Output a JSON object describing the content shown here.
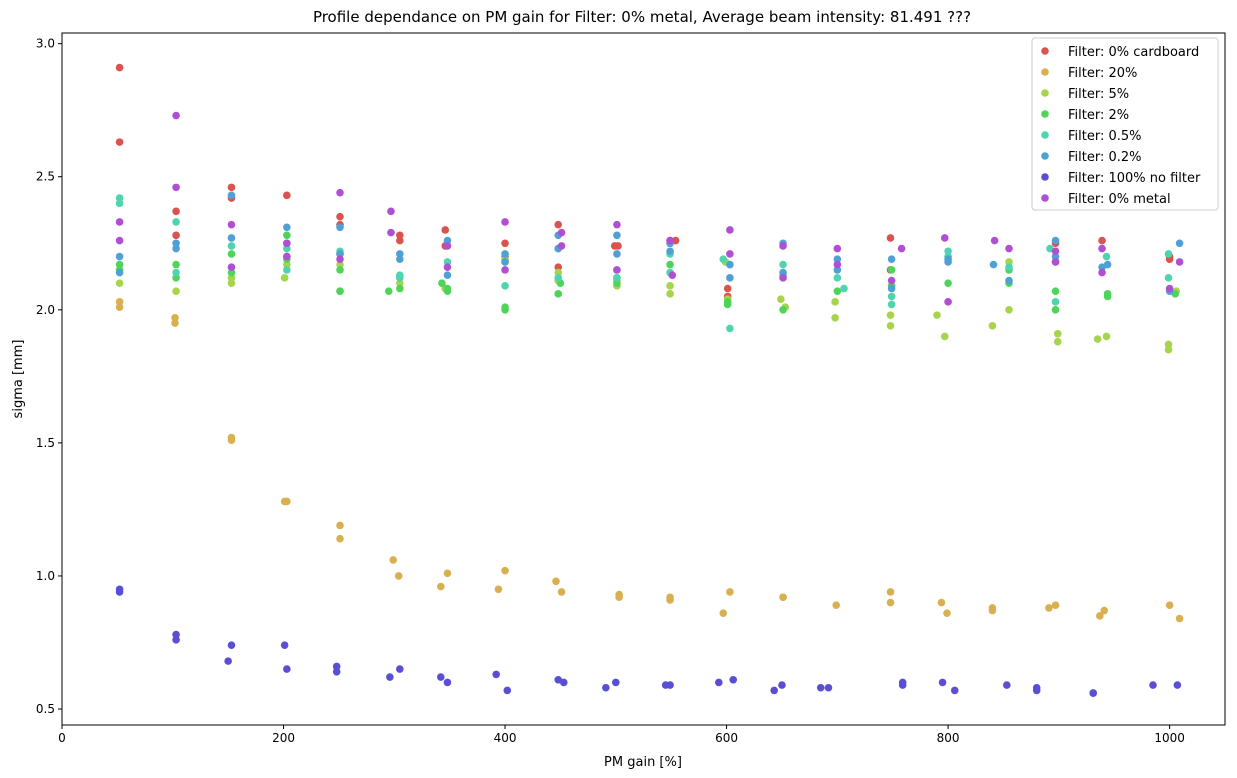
{
  "chart_data": {
    "type": "scatter",
    "title": "Profile dependance on PM gain for Filter: 0% metal, Average beam intensity: 81.491 ???",
    "xlabel": "PM gain [%]",
    "ylabel": "sigma [mm]",
    "xlim": [
      0,
      1050
    ],
    "ylim": [
      0.44,
      3.04
    ],
    "xticks": [
      0,
      200,
      400,
      600,
      800,
      1000
    ],
    "yticks": [
      0.5,
      1.0,
      1.5,
      2.0,
      2.5,
      3.0
    ],
    "xtick_labels": [
      "0",
      "200",
      "400",
      "600",
      "800",
      "1000"
    ],
    "ytick_labels": [
      "0.5",
      "1.0",
      "1.5",
      "2.0",
      "2.5",
      "3.0"
    ],
    "grid": false,
    "legend_position": "top-right",
    "series": [
      {
        "name": "Filter: 0% cardboard",
        "color": "#d9534f",
        "x": [
          52,
          52,
          103,
          103,
          153,
          153,
          203,
          203,
          251,
          251,
          305,
          305,
          346,
          346,
          400,
          400,
          448,
          448,
          499,
          502,
          549,
          549,
          554,
          601,
          601,
          748,
          748,
          897,
          897,
          1000,
          1000,
          939
        ],
        "y": [
          2.91,
          2.63,
          2.37,
          2.28,
          2.46,
          2.42,
          2.43,
          2.2,
          2.35,
          2.32,
          2.28,
          2.26,
          2.3,
          2.24,
          2.25,
          2.2,
          2.32,
          2.16,
          2.24,
          2.24,
          2.26,
          2.25,
          2.26,
          2.08,
          2.05,
          2.27,
          2.15,
          2.25,
          2.18,
          2.19,
          2.2,
          2.26
        ]
      },
      {
        "name": "Filter: 20%",
        "color": "#d9b04f",
        "x": [
          52,
          52,
          102,
          102,
          153,
          153,
          201,
          203,
          251,
          251,
          299,
          304,
          342,
          348,
          394,
          400,
          446,
          451,
          503,
          503,
          549,
          549,
          597,
          603,
          651,
          651,
          699,
          748,
          748,
          794,
          799,
          840,
          840,
          891,
          897,
          937,
          941,
          1000,
          1009
        ],
        "y": [
          2.03,
          2.01,
          1.97,
          1.95,
          1.52,
          1.51,
          1.28,
          1.28,
          1.19,
          1.14,
          1.06,
          1.0,
          0.96,
          1.01,
          0.95,
          1.02,
          0.98,
          0.94,
          0.93,
          0.92,
          0.92,
          0.91,
          0.86,
          0.94,
          0.92,
          0.92,
          0.89,
          0.94,
          0.9,
          0.9,
          0.86,
          0.88,
          0.87,
          0.88,
          0.89,
          0.85,
          0.87,
          0.89,
          0.84
        ]
      },
      {
        "name": "Filter: 5%",
        "color": "#a6d44a",
        "x": [
          52,
          103,
          153,
          153,
          201,
          203,
          251,
          251,
          305,
          346,
          400,
          448,
          448,
          501,
          501,
          549,
          549,
          599,
          601,
          649,
          653,
          698,
          698,
          748,
          748,
          790,
          797,
          840,
          855,
          855,
          899,
          899,
          935,
          943,
          999,
          999,
          1006
        ],
        "y": [
          2.1,
          2.07,
          2.1,
          2.12,
          2.12,
          2.17,
          2.07,
          2.17,
          2.1,
          2.08,
          2.19,
          2.14,
          2.11,
          2.09,
          2.11,
          2.09,
          2.06,
          2.18,
          2.04,
          2.04,
          2.01,
          2.03,
          1.97,
          1.98,
          1.94,
          1.98,
          1.9,
          1.94,
          2.0,
          2.18,
          1.91,
          1.88,
          1.89,
          1.9,
          1.87,
          1.85,
          2.07
        ]
      },
      {
        "name": "Filter: 2%",
        "color": "#4fd45a",
        "x": [
          52,
          52,
          103,
          103,
          153,
          153,
          203,
          203,
          251,
          251,
          295,
          305,
          343,
          348,
          348,
          400,
          400,
          448,
          450,
          501,
          501,
          549,
          601,
          601,
          651,
          700,
          749,
          749,
          800,
          800,
          855,
          855,
          897,
          897,
          944,
          944,
          1005
        ],
        "y": [
          2.17,
          2.15,
          2.17,
          2.12,
          2.14,
          2.21,
          2.28,
          2.19,
          2.15,
          2.07,
          2.07,
          2.08,
          2.1,
          2.07,
          2.08,
          2.01,
          2.0,
          2.06,
          2.1,
          2.12,
          2.1,
          2.17,
          2.03,
          2.02,
          2.0,
          2.07,
          2.15,
          2.09,
          2.1,
          2.2,
          2.1,
          2.15,
          2.07,
          2.0,
          2.06,
          2.05,
          2.06
        ]
      },
      {
        "name": "Filter: 0.5%",
        "color": "#4fd4b0",
        "x": [
          52,
          52,
          103,
          103,
          153,
          153,
          203,
          203,
          251,
          251,
          305,
          305,
          348,
          400,
          400,
          448,
          448,
          501,
          501,
          549,
          549,
          597,
          603,
          603,
          651,
          651,
          700,
          706,
          749,
          749,
          800,
          800,
          855,
          892,
          897,
          943,
          999,
          999
        ],
        "y": [
          2.42,
          2.4,
          2.33,
          2.14,
          2.24,
          2.16,
          2.23,
          2.15,
          2.22,
          2.21,
          2.13,
          2.12,
          2.18,
          2.18,
          2.09,
          2.23,
          2.12,
          2.15,
          2.12,
          2.14,
          2.21,
          2.19,
          2.17,
          1.93,
          2.17,
          2.13,
          2.12,
          2.08,
          2.05,
          2.02,
          2.22,
          2.2,
          2.16,
          2.23,
          2.03,
          2.2,
          2.21,
          2.12
        ]
      },
      {
        "name": "Filter: 0.2%",
        "color": "#4fa0d4",
        "x": [
          52,
          52,
          103,
          103,
          153,
          153,
          203,
          203,
          251,
          251,
          305,
          305,
          348,
          348,
          400,
          400,
          448,
          448,
          501,
          501,
          549,
          549,
          603,
          603,
          651,
          651,
          700,
          700,
          749,
          749,
          800,
          800,
          841,
          855,
          897,
          897,
          939,
          944,
          1000,
          1009
        ],
        "y": [
          2.2,
          2.14,
          2.25,
          2.23,
          2.43,
          2.27,
          2.31,
          2.25,
          2.21,
          2.31,
          2.21,
          2.19,
          2.26,
          2.13,
          2.21,
          2.18,
          2.28,
          2.23,
          2.28,
          2.21,
          2.22,
          2.25,
          2.17,
          2.12,
          2.25,
          2.14,
          2.19,
          2.15,
          2.19,
          2.08,
          2.18,
          2.19,
          2.17,
          2.11,
          2.26,
          2.2,
          2.16,
          2.17,
          2.07,
          2.25
        ]
      },
      {
        "name": "Filter: 100% no filter",
        "color": "#5a4fd4",
        "x": [
          52,
          52,
          103,
          103,
          150,
          153,
          201,
          203,
          248,
          248,
          296,
          305,
          342,
          348,
          392,
          402,
          448,
          453,
          491,
          500,
          545,
          549,
          593,
          606,
          643,
          650,
          685,
          692,
          759,
          759,
          795,
          806,
          853,
          880,
          880,
          931,
          931,
          985,
          1007
        ],
        "y": [
          0.94,
          0.95,
          0.78,
          0.76,
          0.68,
          0.74,
          0.74,
          0.65,
          0.66,
          0.64,
          0.62,
          0.65,
          0.62,
          0.6,
          0.63,
          0.57,
          0.61,
          0.6,
          0.58,
          0.6,
          0.59,
          0.59,
          0.6,
          0.61,
          0.57,
          0.59,
          0.58,
          0.58,
          0.6,
          0.59,
          0.6,
          0.57,
          0.59,
          0.58,
          0.57,
          0.56,
          0.56,
          0.59,
          0.59
        ]
      },
      {
        "name": "Filter: 0% metal",
        "color": "#b04fd4",
        "x": [
          52,
          52,
          103,
          103,
          153,
          153,
          203,
          203,
          251,
          251,
          297,
          297,
          348,
          348,
          400,
          400,
          451,
          451,
          501,
          501,
          549,
          551,
          603,
          603,
          651,
          651,
          700,
          700,
          749,
          758,
          797,
          800,
          842,
          855,
          897,
          897,
          939,
          939,
          1000,
          1009
        ],
        "y": [
          2.33,
          2.26,
          2.73,
          2.46,
          2.32,
          2.16,
          2.25,
          2.2,
          2.44,
          2.19,
          2.37,
          2.29,
          2.24,
          2.16,
          2.33,
          2.15,
          2.29,
          2.24,
          2.32,
          2.15,
          2.26,
          2.13,
          2.3,
          2.21,
          2.24,
          2.12,
          2.23,
          2.17,
          2.11,
          2.23,
          2.27,
          2.03,
          2.26,
          2.23,
          2.22,
          2.18,
          2.23,
          2.14,
          2.08,
          2.18
        ]
      }
    ]
  }
}
